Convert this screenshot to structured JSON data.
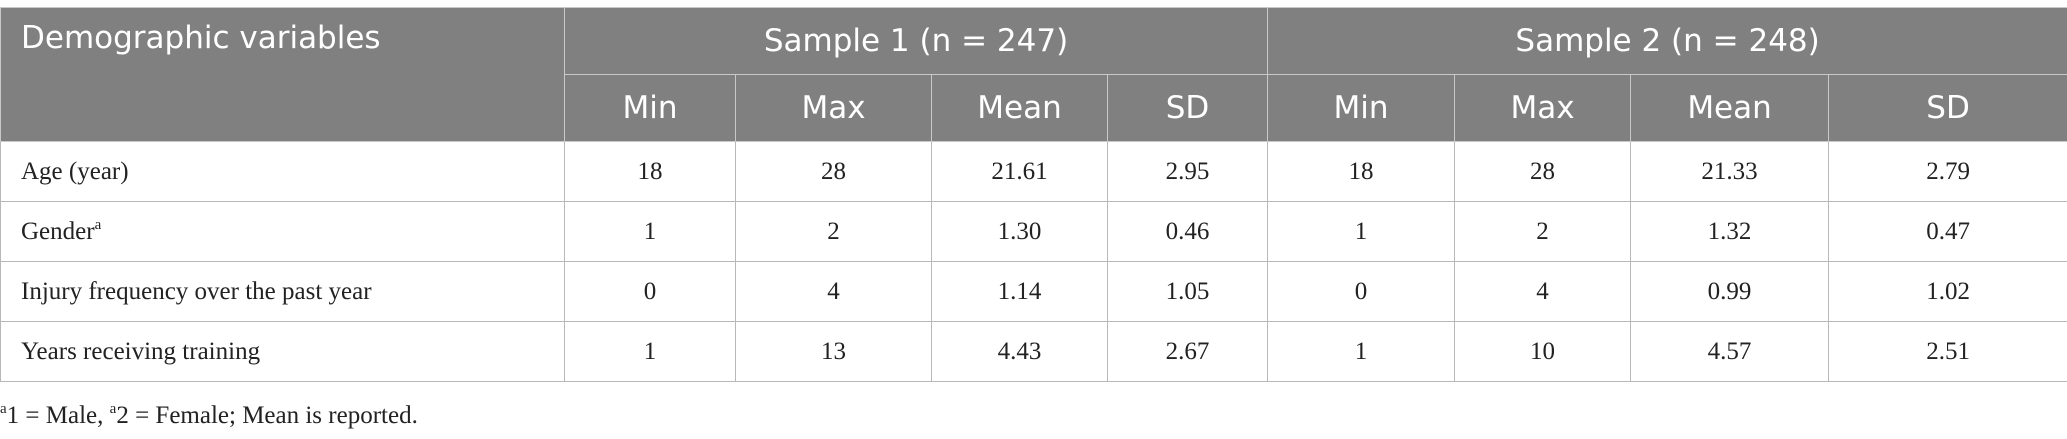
{
  "table": {
    "header": {
      "first": "Demographic variables",
      "groups": [
        "Sample 1 (n = 247)",
        "Sample 2 (n = 248)"
      ],
      "columns": [
        "Min",
        "Max",
        "Mean",
        "SD",
        "Min",
        "Max",
        "Mean",
        "SD"
      ]
    },
    "rows": [
      {
        "label": "Age (year)",
        "cells": [
          "18",
          "28",
          "21.61",
          "2.95",
          "18",
          "28",
          "21.33",
          "2.79"
        ]
      },
      {
        "label": "Gender",
        "sup": "a",
        "cells": [
          "1",
          "2",
          "1.30",
          "0.46",
          "1",
          "2",
          "1.32",
          "0.47"
        ]
      },
      {
        "label": "Injury frequency over the past year",
        "cells": [
          "0",
          "4",
          "1.14",
          "1.05",
          "0",
          "4",
          "0.99",
          "1.02"
        ]
      },
      {
        "label": "Years receiving training",
        "cells": [
          "1",
          "13",
          "4.43",
          "2.67",
          "1",
          "10",
          "4.57",
          "2.51"
        ]
      }
    ]
  },
  "footnote": [
    {
      "sup": "a"
    },
    {
      "text": "1 = Male, "
    },
    {
      "sup": "a"
    },
    {
      "text": "2 = Female; Mean is reported."
    }
  ]
}
